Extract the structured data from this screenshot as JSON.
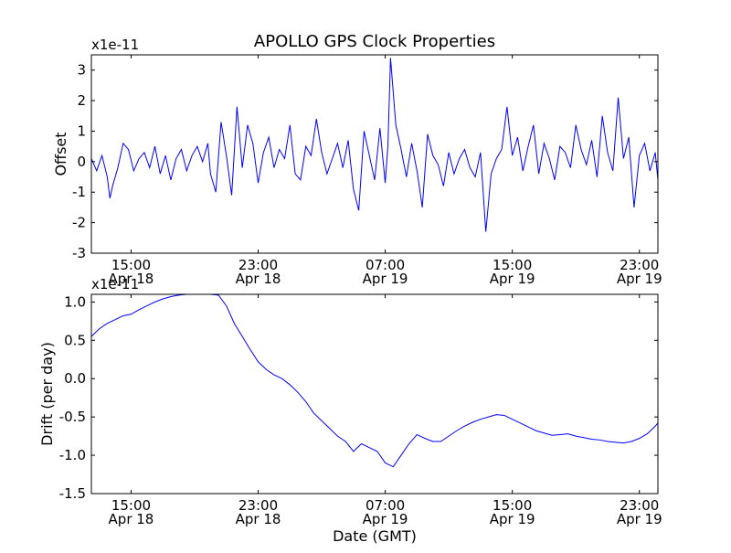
{
  "title": "APOLLO GPS Clock Properties",
  "xlabel": "Date (GMT)",
  "colors": {
    "line": "#0000ff",
    "axis": "#000000",
    "background": "#ffffff"
  },
  "chart_data": [
    {
      "type": "line",
      "title": "APOLLO GPS Clock Properties",
      "xlabel": "",
      "ylabel": "Offset",
      "offset_text": "x1e-11",
      "xlim": [
        "2010-04-18 12:30",
        "2010-04-20 00:10"
      ],
      "ylim": [
        -3,
        3.5
      ],
      "grid": false,
      "yticks": [
        -3,
        -2,
        -1,
        0,
        1,
        2,
        3
      ],
      "ytick_labels": [
        "-3",
        "-2",
        "-1",
        "0",
        "1",
        "2",
        "3"
      ],
      "xticks": [
        "2010-04-18 15:00",
        "2010-04-18 23:00",
        "2010-04-19 07:00",
        "2010-04-19 15:00",
        "2010-04-19 23:00"
      ],
      "xtick_labels": [
        [
          "15:00",
          "Apr 18"
        ],
        [
          "23:00",
          "Apr 18"
        ],
        [
          "07:00",
          "Apr 19"
        ],
        [
          "15:00",
          "Apr 19"
        ],
        [
          "23:00",
          "Apr 19"
        ]
      ],
      "series": [
        {
          "x": [
            "2010-04-18 12:30",
            "2010-04-18 12:50",
            "2010-04-18 13:10",
            "2010-04-18 13:30",
            "2010-04-18 13:40",
            "2010-04-18 13:50",
            "2010-04-18 14:10",
            "2010-04-18 14:30",
            "2010-04-18 14:50",
            "2010-04-18 15:10",
            "2010-04-18 15:30",
            "2010-04-18 15:50",
            "2010-04-18 16:10",
            "2010-04-18 16:30",
            "2010-04-18 16:50",
            "2010-04-18 17:10",
            "2010-04-18 17:30",
            "2010-04-18 17:50",
            "2010-04-18 18:10",
            "2010-04-18 18:30",
            "2010-04-18 18:50",
            "2010-04-18 19:10",
            "2010-04-18 19:30",
            "2010-04-18 19:50",
            "2010-04-18 20:00",
            "2010-04-18 20:20",
            "2010-04-18 20:40",
            "2010-04-18 21:00",
            "2010-04-18 21:20",
            "2010-04-18 21:40",
            "2010-04-18 22:00",
            "2010-04-18 22:20",
            "2010-04-18 22:40",
            "2010-04-18 23:00",
            "2010-04-18 23:20",
            "2010-04-18 23:40",
            "2010-04-19 00:00",
            "2010-04-19 00:20",
            "2010-04-19 00:40",
            "2010-04-19 01:00",
            "2010-04-19 01:20",
            "2010-04-19 01:40",
            "2010-04-19 02:00",
            "2010-04-19 02:20",
            "2010-04-19 02:40",
            "2010-04-19 03:00",
            "2010-04-19 03:20",
            "2010-04-19 03:40",
            "2010-04-19 04:00",
            "2010-04-19 04:20",
            "2010-04-19 04:40",
            "2010-04-19 05:00",
            "2010-04-19 05:20",
            "2010-04-19 05:40",
            "2010-04-19 06:00",
            "2010-04-19 06:20",
            "2010-04-19 06:40",
            "2010-04-19 07:00",
            "2010-04-19 07:10",
            "2010-04-19 07:20",
            "2010-04-19 07:40",
            "2010-04-19 08:00",
            "2010-04-19 08:20",
            "2010-04-19 08:40",
            "2010-04-19 09:00",
            "2010-04-19 09:20",
            "2010-04-19 09:40",
            "2010-04-19 10:00",
            "2010-04-19 10:20",
            "2010-04-19 10:40",
            "2010-04-19 11:00",
            "2010-04-19 11:20",
            "2010-04-19 11:40",
            "2010-04-19 12:00",
            "2010-04-19 12:20",
            "2010-04-19 12:40",
            "2010-04-19 13:00",
            "2010-04-19 13:20",
            "2010-04-19 13:40",
            "2010-04-19 14:00",
            "2010-04-19 14:20",
            "2010-04-19 14:40",
            "2010-04-19 15:00",
            "2010-04-19 15:20",
            "2010-04-19 15:40",
            "2010-04-19 16:00",
            "2010-04-19 16:20",
            "2010-04-19 16:40",
            "2010-04-19 17:00",
            "2010-04-19 17:20",
            "2010-04-19 17:40",
            "2010-04-19 18:00",
            "2010-04-19 18:20",
            "2010-04-19 18:40",
            "2010-04-19 19:00",
            "2010-04-19 19:20",
            "2010-04-19 19:40",
            "2010-04-19 20:00",
            "2010-04-19 20:20",
            "2010-04-19 20:40",
            "2010-04-19 21:00",
            "2010-04-19 21:20",
            "2010-04-19 21:40",
            "2010-04-19 22:00",
            "2010-04-19 22:20",
            "2010-04-19 22:40",
            "2010-04-19 23:00",
            "2010-04-19 23:20",
            "2010-04-19 23:40",
            "2010-04-20 00:00",
            "2010-04-20 00:10"
          ],
          "values": [
            0.1,
            -0.3,
            0.2,
            -0.5,
            -1.2,
            -0.8,
            -0.2,
            0.6,
            0.4,
            -0.3,
            0.1,
            0.3,
            -0.2,
            0.5,
            -0.4,
            0.2,
            -0.6,
            0.1,
            0.4,
            -0.3,
            0.2,
            0.5,
            0.0,
            0.6,
            -0.4,
            -1.0,
            1.3,
            0.2,
            -1.1,
            1.8,
            -0.2,
            1.2,
            0.6,
            -0.7,
            0.3,
            0.8,
            -0.2,
            0.4,
            0.1,
            1.2,
            -0.4,
            -0.6,
            0.5,
            0.2,
            1.4,
            0.3,
            -0.4,
            0.1,
            0.6,
            -0.2,
            0.7,
            -0.9,
            -1.6,
            1.0,
            0.2,
            -0.6,
            1.1,
            -0.7,
            0.5,
            3.4,
            1.2,
            0.4,
            -0.5,
            0.6,
            -0.3,
            -1.5,
            0.9,
            0.2,
            -0.1,
            -0.8,
            0.3,
            -0.4,
            0.1,
            0.4,
            -0.2,
            -0.5,
            0.3,
            -2.3,
            -0.4,
            0.1,
            0.4,
            1.8,
            0.2,
            0.8,
            -0.3,
            0.5,
            1.2,
            -0.4,
            0.6,
            0.1,
            -0.6,
            0.5,
            0.3,
            -0.2,
            1.2,
            0.4,
            -0.1,
            0.7,
            -0.5,
            1.5,
            0.3,
            -0.3,
            2.1,
            0.1,
            0.8,
            -1.5,
            0.2,
            0.6,
            -0.3,
            0.3,
            -0.6
          ]
        }
      ]
    },
    {
      "type": "line",
      "title": "",
      "xlabel": "Date (GMT)",
      "ylabel": "Drift (per day)",
      "offset_text": "x1e-11",
      "xlim": [
        "2010-04-18 12:30",
        "2010-04-20 00:10"
      ],
      "ylim": [
        -1.5,
        1.1
      ],
      "grid": false,
      "yticks": [
        -1.5,
        -1.0,
        -0.5,
        0.0,
        0.5,
        1.0
      ],
      "ytick_labels": [
        "-1.5",
        "-1.0",
        "-0.5",
        "0.0",
        "0.5",
        "1.0"
      ],
      "xticks": [
        "2010-04-18 15:00",
        "2010-04-18 23:00",
        "2010-04-19 07:00",
        "2010-04-19 15:00",
        "2010-04-19 23:00"
      ],
      "xtick_labels": [
        [
          "15:00",
          "Apr 18"
        ],
        [
          "23:00",
          "Apr 18"
        ],
        [
          "07:00",
          "Apr 19"
        ],
        [
          "15:00",
          "Apr 19"
        ],
        [
          "23:00",
          "Apr 19"
        ]
      ],
      "series": [
        {
          "x": [
            "2010-04-18 12:30",
            "2010-04-18 13:00",
            "2010-04-18 13:30",
            "2010-04-18 14:00",
            "2010-04-18 14:30",
            "2010-04-18 15:00",
            "2010-04-18 15:30",
            "2010-04-18 16:00",
            "2010-04-18 16:30",
            "2010-04-18 17:00",
            "2010-04-18 17:30",
            "2010-04-18 18:00",
            "2010-04-18 18:30",
            "2010-04-18 19:00",
            "2010-04-18 19:30",
            "2010-04-18 20:00",
            "2010-04-18 20:30",
            "2010-04-18 21:00",
            "2010-04-18 21:30",
            "2010-04-18 22:00",
            "2010-04-18 22:30",
            "2010-04-18 23:00",
            "2010-04-18 23:30",
            "2010-04-19 00:00",
            "2010-04-19 00:30",
            "2010-04-19 01:00",
            "2010-04-19 01:30",
            "2010-04-19 02:00",
            "2010-04-19 02:30",
            "2010-04-19 03:00",
            "2010-04-19 03:30",
            "2010-04-19 04:00",
            "2010-04-19 04:30",
            "2010-04-19 05:00",
            "2010-04-19 05:30",
            "2010-04-19 06:00",
            "2010-04-19 06:30",
            "2010-04-19 07:00",
            "2010-04-19 07:30",
            "2010-04-19 08:00",
            "2010-04-19 08:30",
            "2010-04-19 09:00",
            "2010-04-19 09:30",
            "2010-04-19 10:00",
            "2010-04-19 10:30",
            "2010-04-19 11:00",
            "2010-04-19 11:30",
            "2010-04-19 12:00",
            "2010-04-19 12:30",
            "2010-04-19 13:00",
            "2010-04-19 13:30",
            "2010-04-19 14:00",
            "2010-04-19 14:30",
            "2010-04-19 15:00",
            "2010-04-19 15:30",
            "2010-04-19 16:00",
            "2010-04-19 16:30",
            "2010-04-19 17:00",
            "2010-04-19 17:30",
            "2010-04-19 18:00",
            "2010-04-19 18:30",
            "2010-04-19 19:00",
            "2010-04-19 19:30",
            "2010-04-19 20:00",
            "2010-04-19 20:30",
            "2010-04-19 21:00",
            "2010-04-19 21:30",
            "2010-04-19 22:00",
            "2010-04-19 22:30",
            "2010-04-19 23:00",
            "2010-04-19 23:30",
            "2010-04-20 00:00",
            "2010-04-20 00:10"
          ],
          "values": [
            0.55,
            0.65,
            0.72,
            0.77,
            0.82,
            0.84,
            0.9,
            0.95,
            1.0,
            1.04,
            1.07,
            1.09,
            1.1,
            1.1,
            1.1,
            1.1,
            1.09,
            0.95,
            0.72,
            0.55,
            0.38,
            0.22,
            0.12,
            0.05,
            0.0,
            -0.08,
            -0.18,
            -0.3,
            -0.45,
            -0.55,
            -0.65,
            -0.75,
            -0.82,
            -0.95,
            -0.85,
            -0.9,
            -0.95,
            -1.1,
            -1.15,
            -1.0,
            -0.85,
            -0.73,
            -0.78,
            -0.82,
            -0.82,
            -0.75,
            -0.68,
            -0.62,
            -0.57,
            -0.53,
            -0.5,
            -0.47,
            -0.48,
            -0.53,
            -0.58,
            -0.63,
            -0.68,
            -0.71,
            -0.74,
            -0.73,
            -0.72,
            -0.75,
            -0.77,
            -0.79,
            -0.8,
            -0.82,
            -0.83,
            -0.84,
            -0.82,
            -0.78,
            -0.72,
            -0.62,
            -0.58
          ]
        }
      ]
    }
  ]
}
